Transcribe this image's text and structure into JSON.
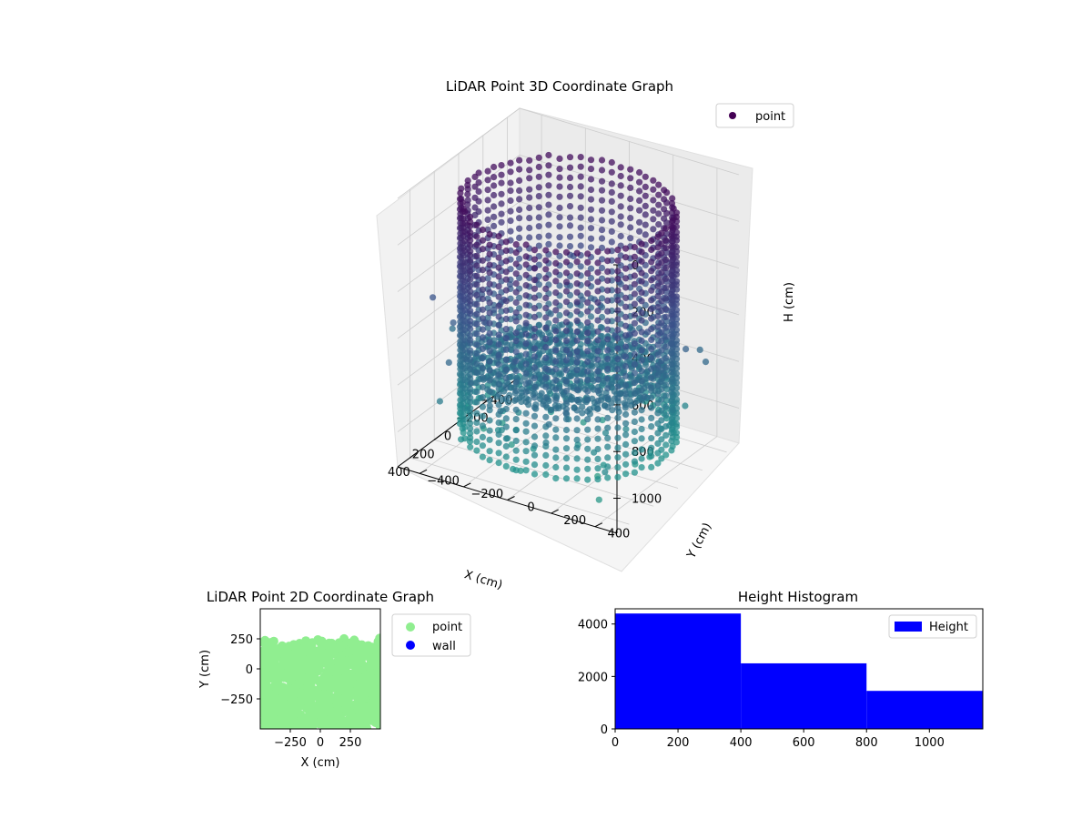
{
  "chart_data": [
    {
      "type": "scatter",
      "title": "LiDAR Point 3D Coordinate Graph",
      "xlabel": "X (cm)",
      "ylabel": "Y (cm)",
      "zlabel": "H (cm)",
      "xlim": [
        -500,
        500
      ],
      "ylim": [
        -500,
        500
      ],
      "zlim": [
        1150,
        0
      ],
      "x_ticks": [
        -400,
        -200,
        0,
        200,
        400
      ],
      "x_tick_labels": [
        "−400",
        "−200",
        "0",
        "200",
        "400"
      ],
      "y_ticks": [
        -400,
        -200,
        0,
        200,
        400
      ],
      "y_tick_labels": [
        "−400",
        "−200",
        "0",
        "200",
        "400"
      ],
      "z_ticks": [
        0,
        200,
        400,
        600,
        800,
        1000
      ],
      "z_tick_labels": [
        "0",
        "200",
        "400",
        "600",
        "800",
        "1000"
      ],
      "z_inverted": true,
      "colormap": "viridis",
      "legend": {
        "position": "top-right",
        "entries": [
          {
            "label": "point",
            "color": "#440154"
          }
        ]
      },
      "structure": {
        "wall_ring": {
          "radius": 430,
          "h_top": 80,
          "h_bottom": 1050
        },
        "floor_disk": {
          "radius": 380,
          "h": 780
        },
        "scatter_points_h_range": [
          500,
          1150
        ]
      },
      "grid": true
    },
    {
      "type": "scatter",
      "title": "LiDAR Point 2D Coordinate Graph",
      "xlabel": "X (cm)",
      "ylabel": "Y (cm)",
      "xlim": [
        -500,
        500
      ],
      "ylim": [
        -500,
        500
      ],
      "x_ticks": [
        -250,
        0,
        250
      ],
      "x_tick_labels": [
        "−250",
        "0",
        "250"
      ],
      "y_ticks": [
        -250,
        0,
        250
      ],
      "y_tick_labels": [
        "−250",
        "0",
        "250"
      ],
      "series": [
        {
          "name": "point",
          "color": "#90ee90"
        },
        {
          "name": "wall",
          "color": "#0000ff"
        }
      ],
      "legend": {
        "position": "outside-right"
      },
      "grid": false
    },
    {
      "type": "bar",
      "title": "Height Histogram",
      "bins": [
        [
          0,
          400
        ],
        [
          400,
          800
        ],
        [
          800,
          1170
        ]
      ],
      "values": [
        4400,
        2500,
        1450
      ],
      "xlim": [
        0,
        1170
      ],
      "ylim": [
        0,
        4580
      ],
      "x_ticks": [
        0,
        200,
        400,
        600,
        800,
        1000
      ],
      "x_tick_labels": [
        "0",
        "200",
        "400",
        "600",
        "800",
        "1000"
      ],
      "y_ticks": [
        0,
        2000,
        4000
      ],
      "y_tick_labels": [
        "0",
        "2000",
        "4000"
      ],
      "color": "#0000ff",
      "series": [
        {
          "name": "Height",
          "color": "#0000ff"
        }
      ],
      "legend": {
        "position": "top-right"
      },
      "grid": false
    }
  ]
}
